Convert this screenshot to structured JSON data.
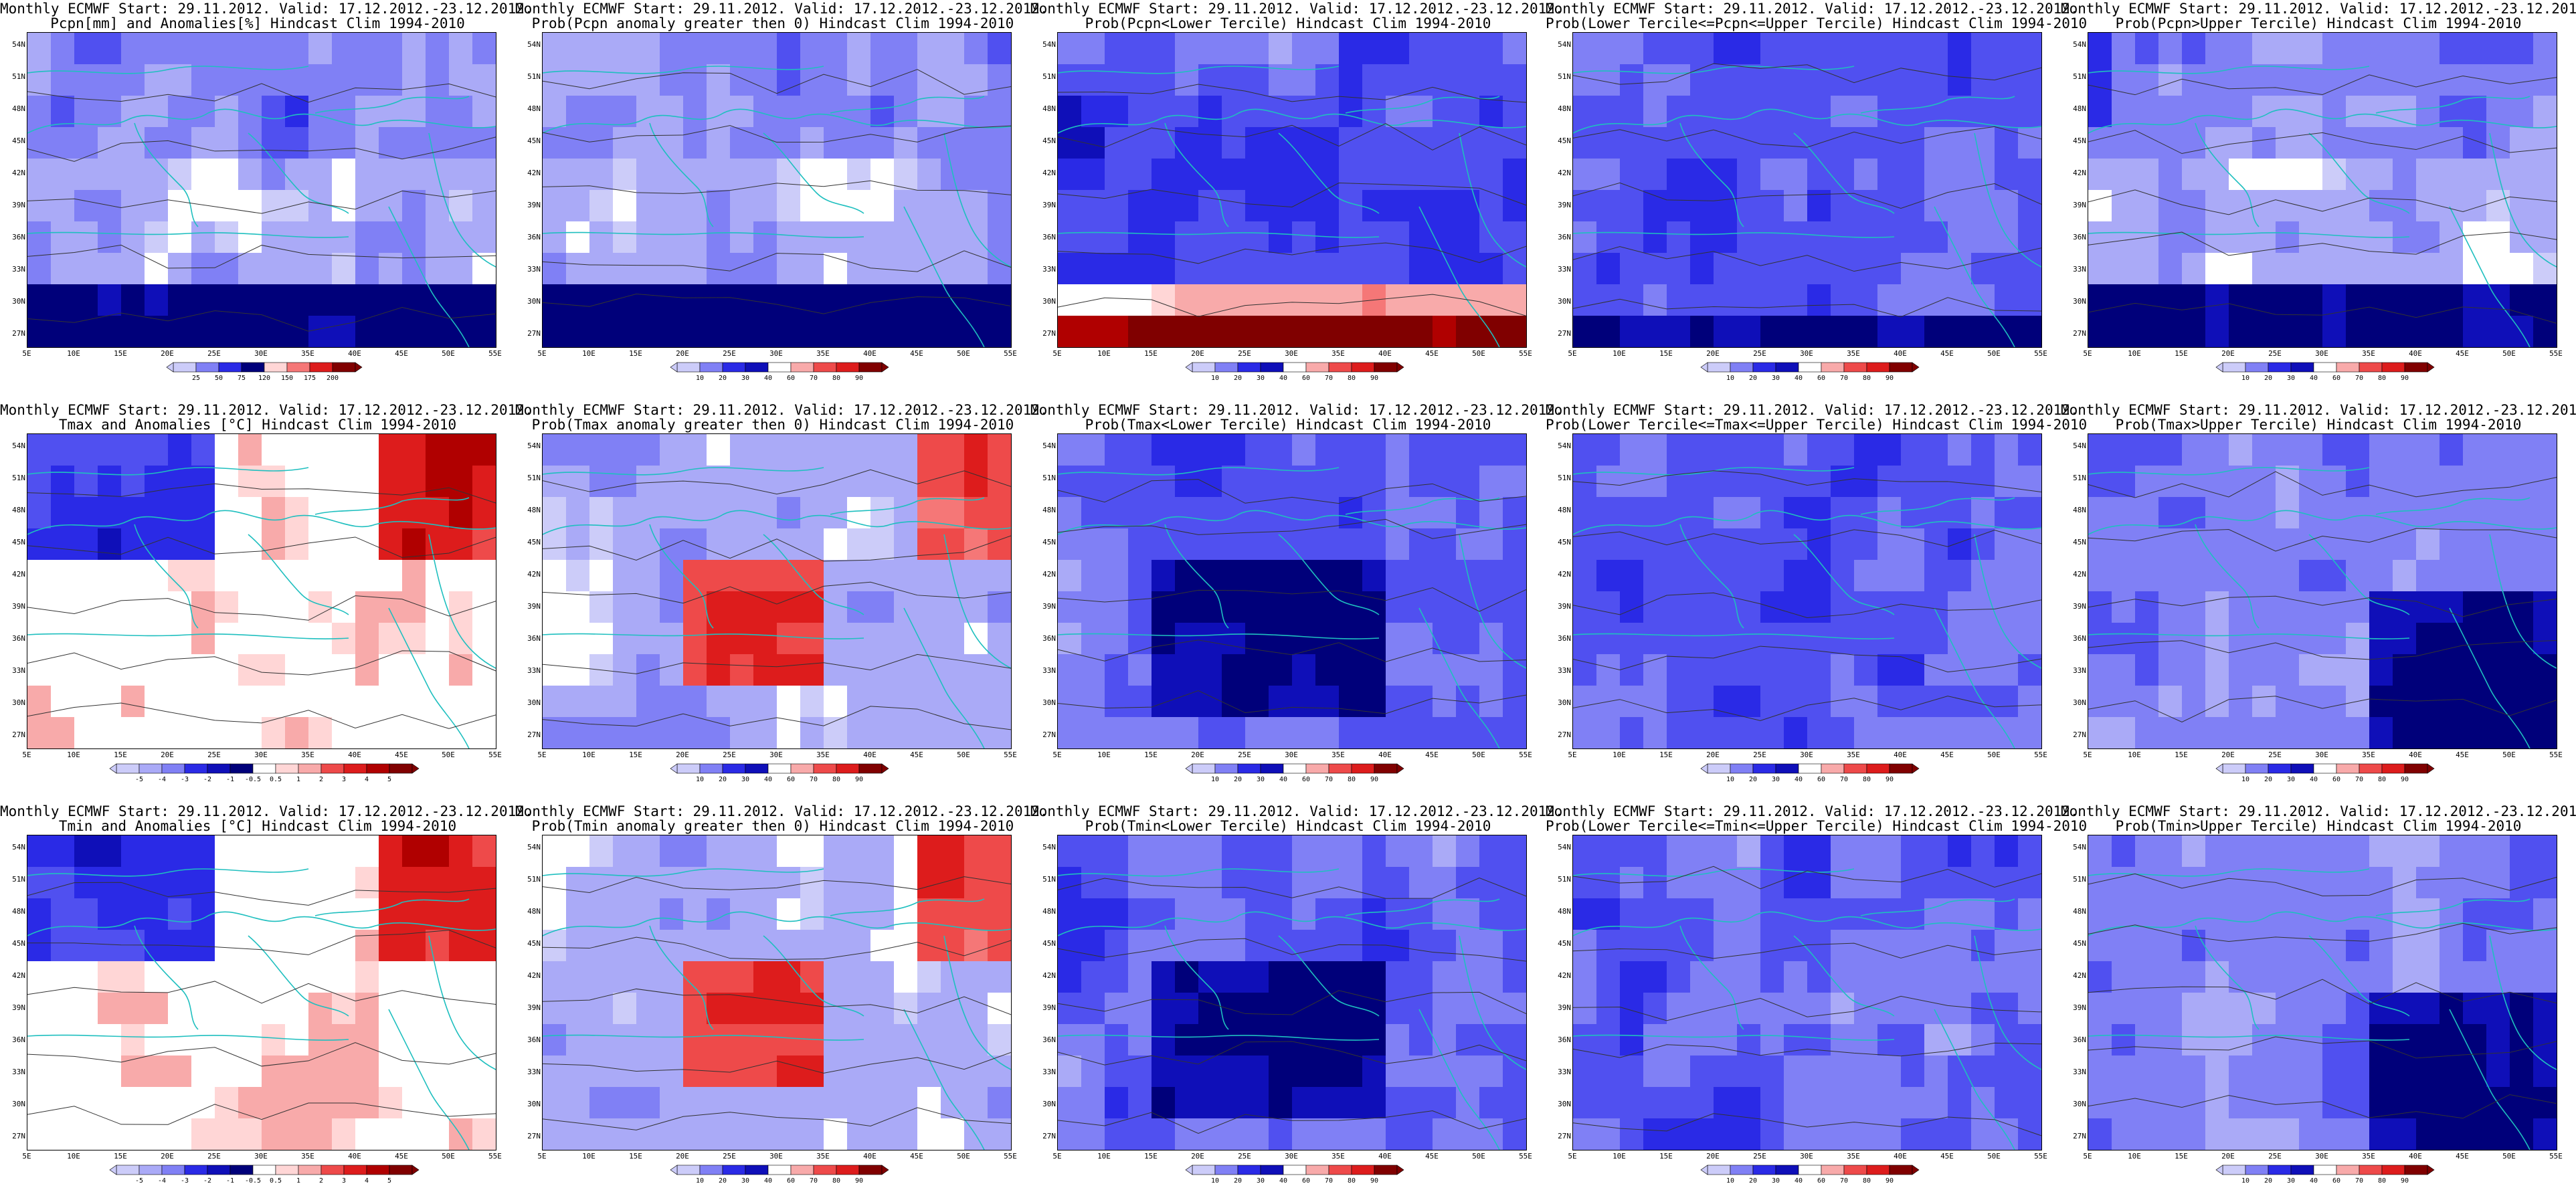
{
  "header": "Monthly ECMWF Start: 29.11.2012. Valid: 17.12.2012.-23.12.2012.",
  "axes": {
    "lat_labels": [
      "54N",
      "51N",
      "48N",
      "45N",
      "42N",
      "39N",
      "36N",
      "33N",
      "30N",
      "27N"
    ],
    "lon_labels": [
      "5E",
      "10E",
      "15E",
      "20E",
      "25E",
      "30E",
      "35E",
      "40E",
      "45E",
      "50E",
      "55E"
    ]
  },
  "colorbars": {
    "pcpn_anom": [
      "25",
      "50",
      "75",
      "120",
      "150",
      "175",
      "200"
    ],
    "temp_anom": [
      "-5",
      "-4",
      "-3",
      "-2",
      "-1",
      "-0.5",
      "0.5",
      "1",
      "2",
      "3",
      "4",
      "5"
    ],
    "prob": [
      "10",
      "20",
      "30",
      "40",
      "60",
      "70",
      "80",
      "90"
    ]
  },
  "colors": {
    "blues": [
      "#00007a",
      "#0f0fb8",
      "#2a2ae6",
      "#5050f0",
      "#8080f5",
      "#aaaaf7",
      "#ccccf9"
    ],
    "reds": [
      "#ffd6d6",
      "#f8aaaa",
      "#f57777",
      "#ee4a4a",
      "#dd1c1c",
      "#b00000",
      "#800000"
    ],
    "coast": "#1fbfbf",
    "contour": "#333333"
  },
  "panels": [
    {
      "title": "Pcpn[mm] and Anomalies[%] Hindcast Clim 1994-2010",
      "scheme": "pcpn_anom",
      "seed": 11,
      "colorbar": "pcpn_anom"
    },
    {
      "title": "Prob(Pcpn anomaly greater then 0) Hindcast Clim 1994-2010",
      "scheme": "pcpn_prob",
      "seed": 23,
      "colorbar": "prob"
    },
    {
      "title": "Prob(Pcpn<Lower Tercile) Hindcast Clim 1994-2010",
      "scheme": "pcpn_lower",
      "seed": 37,
      "colorbar": "prob"
    },
    {
      "title": "Prob(Lower Tercile<=Pcpn<=Upper Tercile) Hindcast Clim 1994-2010",
      "scheme": "pcpn_mid",
      "seed": 41,
      "colorbar": "prob"
    },
    {
      "title": "Prob(Pcpn>Upper Tercile) Hindcast Clim 1994-2010",
      "scheme": "pcpn_upper",
      "seed": 53,
      "colorbar": "prob"
    },
    {
      "title": "Tmax and Anomalies [°C] Hindcast Clim 1994-2010",
      "scheme": "t_anom",
      "seed": 61,
      "colorbar": "temp_anom"
    },
    {
      "title": "Prob(Tmax anomaly greater then 0) Hindcast Clim 1994-2010",
      "scheme": "t_prob",
      "seed": 71,
      "colorbar": "prob"
    },
    {
      "title": "Prob(Tmax<Lower Tercile) Hindcast Clim 1994-2010",
      "scheme": "t_lower",
      "seed": 83,
      "colorbar": "prob"
    },
    {
      "title": "Prob(Lower Tercile<=Tmax<=Upper Tercile) Hindcast Clim 1994-2010",
      "scheme": "t_mid",
      "seed": 97,
      "colorbar": "prob"
    },
    {
      "title": "Prob(Tmax>Upper Tercile) Hindcast Clim 1994-2010",
      "scheme": "t_upper",
      "seed": 101,
      "colorbar": "prob"
    },
    {
      "title": "Tmin and Anomalies [°C] Hindcast Clim 1994-2010",
      "scheme": "tn_anom",
      "seed": 113,
      "colorbar": "temp_anom"
    },
    {
      "title": "Prob(Tmin anomaly greater then 0) Hindcast Clim 1994-2010",
      "scheme": "tn_prob",
      "seed": 127,
      "colorbar": "prob"
    },
    {
      "title": "Prob(Tmin<Lower Tercile) Hindcast Clim 1994-2010",
      "scheme": "tn_lower",
      "seed": 131,
      "colorbar": "prob"
    },
    {
      "title": "Prob(Lower Tercile<=Tmin<=Upper Tercile) Hindcast Clim 1994-2010",
      "scheme": "tn_mid",
      "seed": 139,
      "colorbar": "prob"
    },
    {
      "title": "Prob(Tmin>Upper Tercile) Hindcast Clim 1994-2010",
      "scheme": "tn_upper",
      "seed": 149,
      "colorbar": "prob"
    }
  ]
}
